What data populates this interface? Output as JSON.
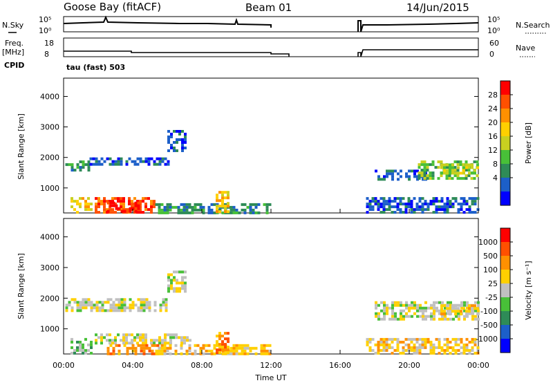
{
  "header": {
    "station": "Goose Bay (fitACF)",
    "beam": "Beam 01",
    "date": "14/Jun/2015"
  },
  "strip_labels": {
    "nsky": "N.Sky",
    "nsearch": "N.Search",
    "freq_line1": "Freq.",
    "freq_line2": "[MHz]",
    "nave": "Nave",
    "cpid": "CPID",
    "cpid_value": "tau (fast) 503",
    "nsky_ticks": [
      "10^5",
      "10^0"
    ],
    "nsearch_ticks": [
      "10^5",
      "10^0"
    ],
    "freq_ticks": [
      "18",
      "8"
    ],
    "nave_ticks": [
      "60",
      "0"
    ]
  },
  "chart_data": [
    {
      "type": "heatmap",
      "name": "power",
      "ylabel": "Slant Range [km]",
      "xlabel": "",
      "ylim": [
        180,
        4600
      ],
      "xlim": [
        0,
        24
      ],
      "y_ticks": [
        "4000",
        "3000",
        "2000",
        "1000"
      ],
      "colorbar": {
        "label": "Power [dB]",
        "ticks": [
          "28",
          "24",
          "20",
          "16",
          "12",
          "8",
          "4"
        ],
        "colors": [
          "#0000ff",
          "#1c5fc9",
          "#2e8b57",
          "#48c038",
          "#c8d020",
          "#ffd000",
          "#ff9000",
          "#ff5000",
          "#ff0000"
        ]
      },
      "regions": [
        {
          "t0": 0.1,
          "t1": 1.5,
          "r0": 1550,
          "r1": 1900,
          "level": 2
        },
        {
          "t0": 1.5,
          "t1": 6.0,
          "r0": 1750,
          "r1": 2000,
          "level": 1
        },
        {
          "t0": 6.0,
          "t1": 7.1,
          "r0": 2200,
          "r1": 2900,
          "level": 1
        },
        {
          "t0": 0.4,
          "t1": 1.6,
          "r0": 200,
          "r1": 700,
          "level": 5
        },
        {
          "t0": 1.8,
          "t1": 5.3,
          "r0": 200,
          "r1": 700,
          "level": 7
        },
        {
          "t0": 2.5,
          "t1": 4.3,
          "r0": 220,
          "r1": 550,
          "level": 8
        },
        {
          "t0": 5.3,
          "t1": 12.0,
          "r0": 200,
          "r1": 500,
          "level": 2
        },
        {
          "t0": 8.8,
          "t1": 9.6,
          "r0": 200,
          "r1": 900,
          "level": 5
        },
        {
          "t0": 17.5,
          "t1": 24.0,
          "r0": 200,
          "r1": 700,
          "level": 1
        },
        {
          "t0": 18.0,
          "t1": 21.0,
          "r0": 1300,
          "r1": 1600,
          "level": 1
        },
        {
          "t0": 20.5,
          "t1": 24.0,
          "r0": 1350,
          "r1": 1900,
          "level": 3
        },
        {
          "t0": 21.8,
          "t1": 24.0,
          "r0": 1500,
          "r1": 1800,
          "level": 4
        }
      ]
    },
    {
      "type": "heatmap",
      "name": "velocity",
      "ylabel": "Slant Range [km]",
      "xlabel": "Time UT",
      "ylim": [
        180,
        4600
      ],
      "xlim": [
        0,
        24
      ],
      "y_ticks": [
        "4000",
        "3000",
        "2000",
        "1000"
      ],
      "x_ticks": [
        "00:00",
        "04:00",
        "08:00",
        "12:00",
        "16:00",
        "20:00",
        "00:00"
      ],
      "colorbar": {
        "label": "Velocity [m s^-1]",
        "ticks": [
          "1000",
          "500",
          "100",
          "25",
          "-25",
          "-100",
          "-500",
          "-1000"
        ],
        "colors": [
          "#0000ff",
          "#1c5fc9",
          "#2e8b57",
          "#48c038",
          "#c0c0c0",
          "#ffd000",
          "#ff9000",
          "#ff5000",
          "#ff0000"
        ]
      },
      "regions": [
        {
          "t0": 0.1,
          "t1": 6.0,
          "r0": 1550,
          "r1": 2000,
          "level": 4
        },
        {
          "t0": 6.0,
          "t1": 7.1,
          "r0": 2200,
          "r1": 2900,
          "level": 4
        },
        {
          "t0": 0.4,
          "t1": 1.6,
          "r0": 200,
          "r1": 700,
          "level": 3
        },
        {
          "t0": 1.8,
          "t1": 7.3,
          "r0": 550,
          "r1": 850,
          "level": 4
        },
        {
          "t0": 2.5,
          "t1": 5.5,
          "r0": 200,
          "r1": 500,
          "level": 6
        },
        {
          "t0": 5.3,
          "t1": 12.0,
          "r0": 200,
          "r1": 500,
          "level": 5
        },
        {
          "t0": 8.8,
          "t1": 9.6,
          "r0": 200,
          "r1": 900,
          "level": 6
        },
        {
          "t0": 17.5,
          "t1": 24.0,
          "r0": 200,
          "r1": 700,
          "level": 5
        },
        {
          "t0": 18.0,
          "t1": 24.0,
          "r0": 1300,
          "r1": 1900,
          "level": 4
        },
        {
          "t0": 21.8,
          "t1": 24.0,
          "r0": 1500,
          "r1": 1800,
          "level": 5
        }
      ]
    }
  ]
}
